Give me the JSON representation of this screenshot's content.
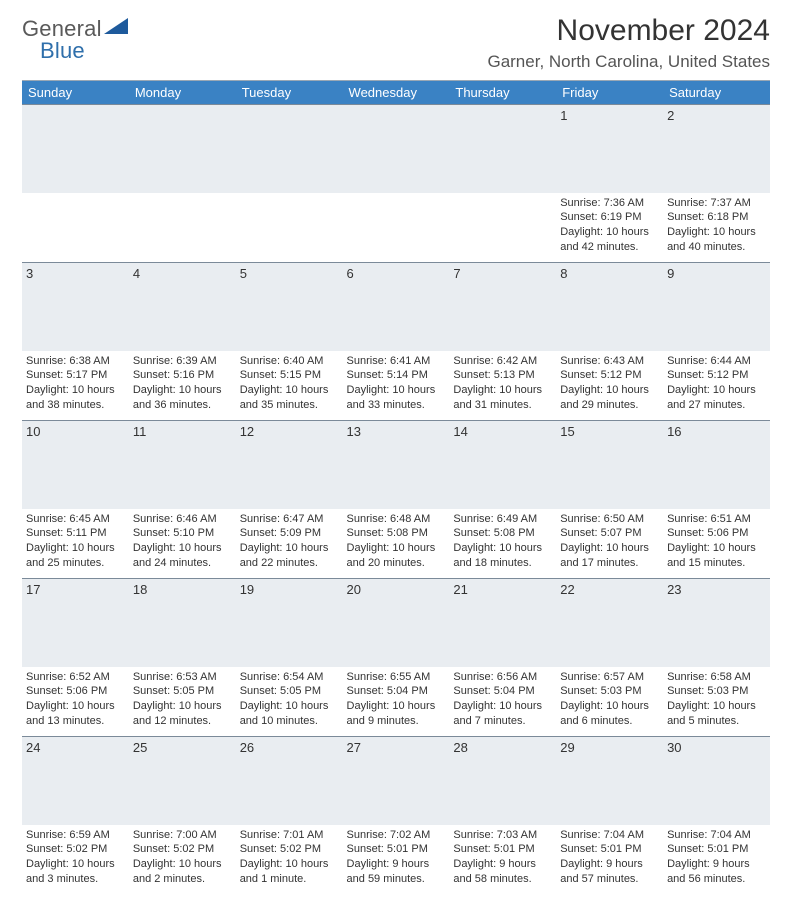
{
  "logo": {
    "word1": "General",
    "word2": "Blue"
  },
  "title": "November 2024",
  "location": "Garner, North Carolina, United States",
  "colors": {
    "header_bg": "#3a82c4",
    "header_text": "#ffffff",
    "daynum_bg": "#e9edf1",
    "rule": "#7b8a99",
    "logo_gray": "#5a5a5a",
    "logo_blue": "#2f6fab",
    "triangle": "#1e5a9c"
  },
  "columns": [
    "Sunday",
    "Monday",
    "Tuesday",
    "Wednesday",
    "Thursday",
    "Friday",
    "Saturday"
  ],
  "weeks": [
    {
      "nums": [
        "",
        "",
        "",
        "",
        "",
        "1",
        "2"
      ],
      "cells": [
        null,
        null,
        null,
        null,
        null,
        {
          "sunrise": "7:36 AM",
          "sunset": "6:19 PM",
          "daylight": "10 hours and 42 minutes."
        },
        {
          "sunrise": "7:37 AM",
          "sunset": "6:18 PM",
          "daylight": "10 hours and 40 minutes."
        }
      ]
    },
    {
      "nums": [
        "3",
        "4",
        "5",
        "6",
        "7",
        "8",
        "9"
      ],
      "cells": [
        {
          "sunrise": "6:38 AM",
          "sunset": "5:17 PM",
          "daylight": "10 hours and 38 minutes."
        },
        {
          "sunrise": "6:39 AM",
          "sunset": "5:16 PM",
          "daylight": "10 hours and 36 minutes."
        },
        {
          "sunrise": "6:40 AM",
          "sunset": "5:15 PM",
          "daylight": "10 hours and 35 minutes."
        },
        {
          "sunrise": "6:41 AM",
          "sunset": "5:14 PM",
          "daylight": "10 hours and 33 minutes."
        },
        {
          "sunrise": "6:42 AM",
          "sunset": "5:13 PM",
          "daylight": "10 hours and 31 minutes."
        },
        {
          "sunrise": "6:43 AM",
          "sunset": "5:12 PM",
          "daylight": "10 hours and 29 minutes."
        },
        {
          "sunrise": "6:44 AM",
          "sunset": "5:12 PM",
          "daylight": "10 hours and 27 minutes."
        }
      ]
    },
    {
      "nums": [
        "10",
        "11",
        "12",
        "13",
        "14",
        "15",
        "16"
      ],
      "cells": [
        {
          "sunrise": "6:45 AM",
          "sunset": "5:11 PM",
          "daylight": "10 hours and 25 minutes."
        },
        {
          "sunrise": "6:46 AM",
          "sunset": "5:10 PM",
          "daylight": "10 hours and 24 minutes."
        },
        {
          "sunrise": "6:47 AM",
          "sunset": "5:09 PM",
          "daylight": "10 hours and 22 minutes."
        },
        {
          "sunrise": "6:48 AM",
          "sunset": "5:08 PM",
          "daylight": "10 hours and 20 minutes."
        },
        {
          "sunrise": "6:49 AM",
          "sunset": "5:08 PM",
          "daylight": "10 hours and 18 minutes."
        },
        {
          "sunrise": "6:50 AM",
          "sunset": "5:07 PM",
          "daylight": "10 hours and 17 minutes."
        },
        {
          "sunrise": "6:51 AM",
          "sunset": "5:06 PM",
          "daylight": "10 hours and 15 minutes."
        }
      ]
    },
    {
      "nums": [
        "17",
        "18",
        "19",
        "20",
        "21",
        "22",
        "23"
      ],
      "cells": [
        {
          "sunrise": "6:52 AM",
          "sunset": "5:06 PM",
          "daylight": "10 hours and 13 minutes."
        },
        {
          "sunrise": "6:53 AM",
          "sunset": "5:05 PM",
          "daylight": "10 hours and 12 minutes."
        },
        {
          "sunrise": "6:54 AM",
          "sunset": "5:05 PM",
          "daylight": "10 hours and 10 minutes."
        },
        {
          "sunrise": "6:55 AM",
          "sunset": "5:04 PM",
          "daylight": "10 hours and 9 minutes."
        },
        {
          "sunrise": "6:56 AM",
          "sunset": "5:04 PM",
          "daylight": "10 hours and 7 minutes."
        },
        {
          "sunrise": "6:57 AM",
          "sunset": "5:03 PM",
          "daylight": "10 hours and 6 minutes."
        },
        {
          "sunrise": "6:58 AM",
          "sunset": "5:03 PM",
          "daylight": "10 hours and 5 minutes."
        }
      ]
    },
    {
      "nums": [
        "24",
        "25",
        "26",
        "27",
        "28",
        "29",
        "30"
      ],
      "cells": [
        {
          "sunrise": "6:59 AM",
          "sunset": "5:02 PM",
          "daylight": "10 hours and 3 minutes."
        },
        {
          "sunrise": "7:00 AM",
          "sunset": "5:02 PM",
          "daylight": "10 hours and 2 minutes."
        },
        {
          "sunrise": "7:01 AM",
          "sunset": "5:02 PM",
          "daylight": "10 hours and 1 minute."
        },
        {
          "sunrise": "7:02 AM",
          "sunset": "5:01 PM",
          "daylight": "9 hours and 59 minutes."
        },
        {
          "sunrise": "7:03 AM",
          "sunset": "5:01 PM",
          "daylight": "9 hours and 58 minutes."
        },
        {
          "sunrise": "7:04 AM",
          "sunset": "5:01 PM",
          "daylight": "9 hours and 57 minutes."
        },
        {
          "sunrise": "7:04 AM",
          "sunset": "5:01 PM",
          "daylight": "9 hours and 56 minutes."
        }
      ]
    }
  ],
  "labels": {
    "sunrise": "Sunrise: ",
    "sunset": "Sunset: ",
    "daylight": "Daylight: "
  }
}
